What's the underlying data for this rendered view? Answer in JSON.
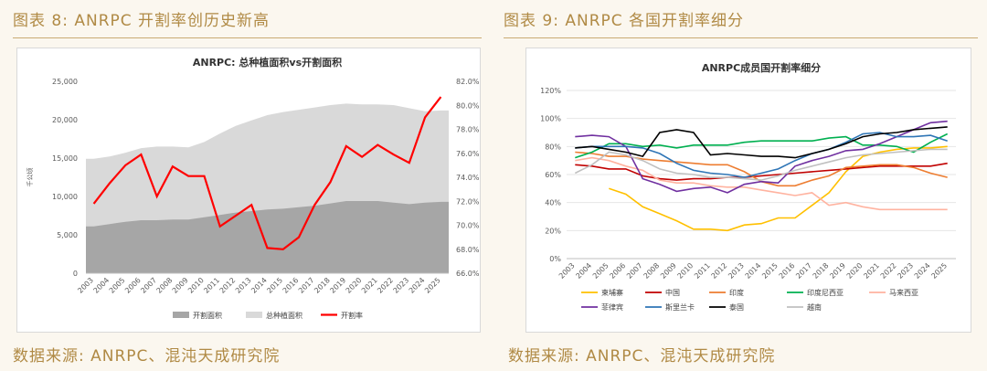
{
  "captions": {
    "left_title": "图表 8: ANRPC 开割率创历史新高",
    "right_title": "图表 9: ANRPC 各国开割率细分",
    "left_source": "数据来源: ANRPC、混沌天成研究院",
    "right_source": "数据来源: ANRPC、混沌天成研究院"
  },
  "colors": {
    "accent": "#b08a45",
    "tapped_area": "#a6a6a6",
    "total_area": "#d9d9d9",
    "rate_line": "#ff0000"
  },
  "chart_data": [
    {
      "type": "area",
      "title": "ANRPC: 总种植面积vs开割面积",
      "ylabel": "千公顷",
      "categories": [
        "2003",
        "2004",
        "2005",
        "2006",
        "2007",
        "2008",
        "2009",
        "2010",
        "2011",
        "2012",
        "2013",
        "2014",
        "2015",
        "2016",
        "2017",
        "2018",
        "2019",
        "2020",
        "2021",
        "2022",
        "2023",
        "2024",
        "2025"
      ],
      "y_ticks": [
        "0",
        "5,000",
        "10,000",
        "15,000",
        "20,000",
        "25,000"
      ],
      "y2_ticks": [
        "66.0%",
        "68.0%",
        "70.0%",
        "72.0%",
        "74.0%",
        "76.0%",
        "78.0%",
        "80.0%",
        "82.0%"
      ],
      "ylim": [
        0,
        25000
      ],
      "y2lim": [
        66,
        82
      ],
      "series": [
        {
          "name": "总种植面积",
          "kind": "area",
          "axis": "left",
          "color": "#d9d9d9",
          "values": [
            14900,
            15200,
            15700,
            16300,
            16500,
            16500,
            16400,
            17100,
            18200,
            19200,
            19900,
            20600,
            21000,
            21300,
            21600,
            21900,
            22100,
            22000,
            22000,
            21900,
            21500,
            21100,
            21200
          ]
        },
        {
          "name": "开割面积",
          "kind": "area",
          "axis": "left",
          "color": "#a6a6a6",
          "values": [
            6100,
            6400,
            6700,
            6900,
            6900,
            7000,
            7000,
            7300,
            7600,
            7900,
            8100,
            8300,
            8400,
            8600,
            8800,
            9100,
            9400,
            9400,
            9400,
            9200,
            9000,
            9200,
            9300
          ]
        },
        {
          "name": "开割率",
          "kind": "line",
          "axis": "right",
          "color": "#ff0000",
          "values": [
            71.8,
            73.5,
            75.0,
            75.9,
            72.4,
            74.9,
            74.1,
            74.1,
            69.9,
            70.8,
            71.7,
            68.1,
            68.0,
            69.0,
            71.7,
            73.6,
            76.6,
            75.7,
            76.7,
            75.9,
            75.2,
            79.0,
            80.7
          ]
        }
      ],
      "legend": [
        "开割面积",
        "总种植面积",
        "开割率"
      ],
      "legend_position": "bottom"
    },
    {
      "type": "line",
      "title": "ANRPC成员国开割率细分",
      "categories": [
        "2003",
        "2004",
        "2005",
        "2006",
        "2007",
        "2008",
        "2009",
        "2010",
        "2011",
        "2012",
        "2013",
        "2014",
        "2015",
        "2016",
        "2017",
        "2018",
        "2019",
        "2020",
        "2021",
        "2022",
        "2023",
        "2024",
        "2025"
      ],
      "y_ticks": [
        "0%",
        "20%",
        "40%",
        "60%",
        "80%",
        "100%",
        "120%"
      ],
      "ylim": [
        0,
        120
      ],
      "series": [
        {
          "name": "柬埔寨",
          "color": "#ffc000",
          "values": [
            null,
            null,
            50,
            46,
            37,
            32,
            27,
            21,
            21,
            20,
            24,
            25,
            29,
            29,
            38,
            47,
            62,
            73,
            76,
            78,
            79,
            79,
            80
          ]
        },
        {
          "name": "中国",
          "color": "#c00000",
          "values": [
            67,
            66,
            64,
            64,
            59,
            57,
            56,
            57,
            57,
            58,
            58,
            59,
            60,
            61,
            62,
            63,
            64,
            65,
            66,
            66,
            66,
            66,
            68
          ]
        },
        {
          "name": "印度",
          "color": "#ed7d31",
          "values": [
            76,
            75,
            73,
            73,
            71,
            70,
            69,
            68,
            67,
            67,
            62,
            55,
            52,
            52,
            56,
            59,
            65,
            66,
            67,
            67,
            65,
            61,
            58
          ]
        },
        {
          "name": "印度尼西亚",
          "color": "#00b050",
          "values": [
            72,
            76,
            82,
            82,
            80,
            81,
            79,
            81,
            81,
            81,
            83,
            84,
            84,
            84,
            84,
            86,
            87,
            81,
            81,
            80,
            76,
            83,
            89
          ]
        },
        {
          "name": "马来西亚",
          "color": "#ffb3a0",
          "values": [
            70,
            72,
            70,
            66,
            63,
            56,
            54,
            54,
            52,
            51,
            51,
            49,
            47,
            45,
            47,
            38,
            40,
            37,
            35,
            35,
            35,
            35,
            35
          ]
        },
        {
          "name": "菲律宾",
          "color": "#7030a0",
          "values": [
            87,
            88,
            87,
            80,
            57,
            53,
            48,
            50,
            51,
            47,
            53,
            55,
            54,
            66,
            70,
            73,
            77,
            78,
            82,
            87,
            92,
            97,
            98
          ]
        },
        {
          "name": "斯里兰卡",
          "color": "#2e75b6",
          "values": [
            79,
            80,
            80,
            80,
            79,
            75,
            68,
            63,
            61,
            60,
            58,
            61,
            64,
            70,
            75,
            78,
            83,
            89,
            90,
            87,
            87,
            88,
            84
          ]
        },
        {
          "name": "泰国",
          "color": "#000000",
          "values": [
            79,
            80,
            78,
            76,
            73,
            90,
            92,
            90,
            74,
            75,
            74,
            73,
            73,
            72,
            75,
            78,
            82,
            87,
            89,
            90,
            92,
            93,
            94
          ]
        },
        {
          "name": "越南",
          "color": "#c0c0c0",
          "values": [
            61,
            67,
            76,
            74,
            70,
            64,
            61,
            60,
            58,
            58,
            57,
            56,
            59,
            63,
            66,
            69,
            72,
            74,
            75,
            76,
            77,
            78,
            78
          ]
        }
      ],
      "legend_position": "bottom"
    }
  ]
}
